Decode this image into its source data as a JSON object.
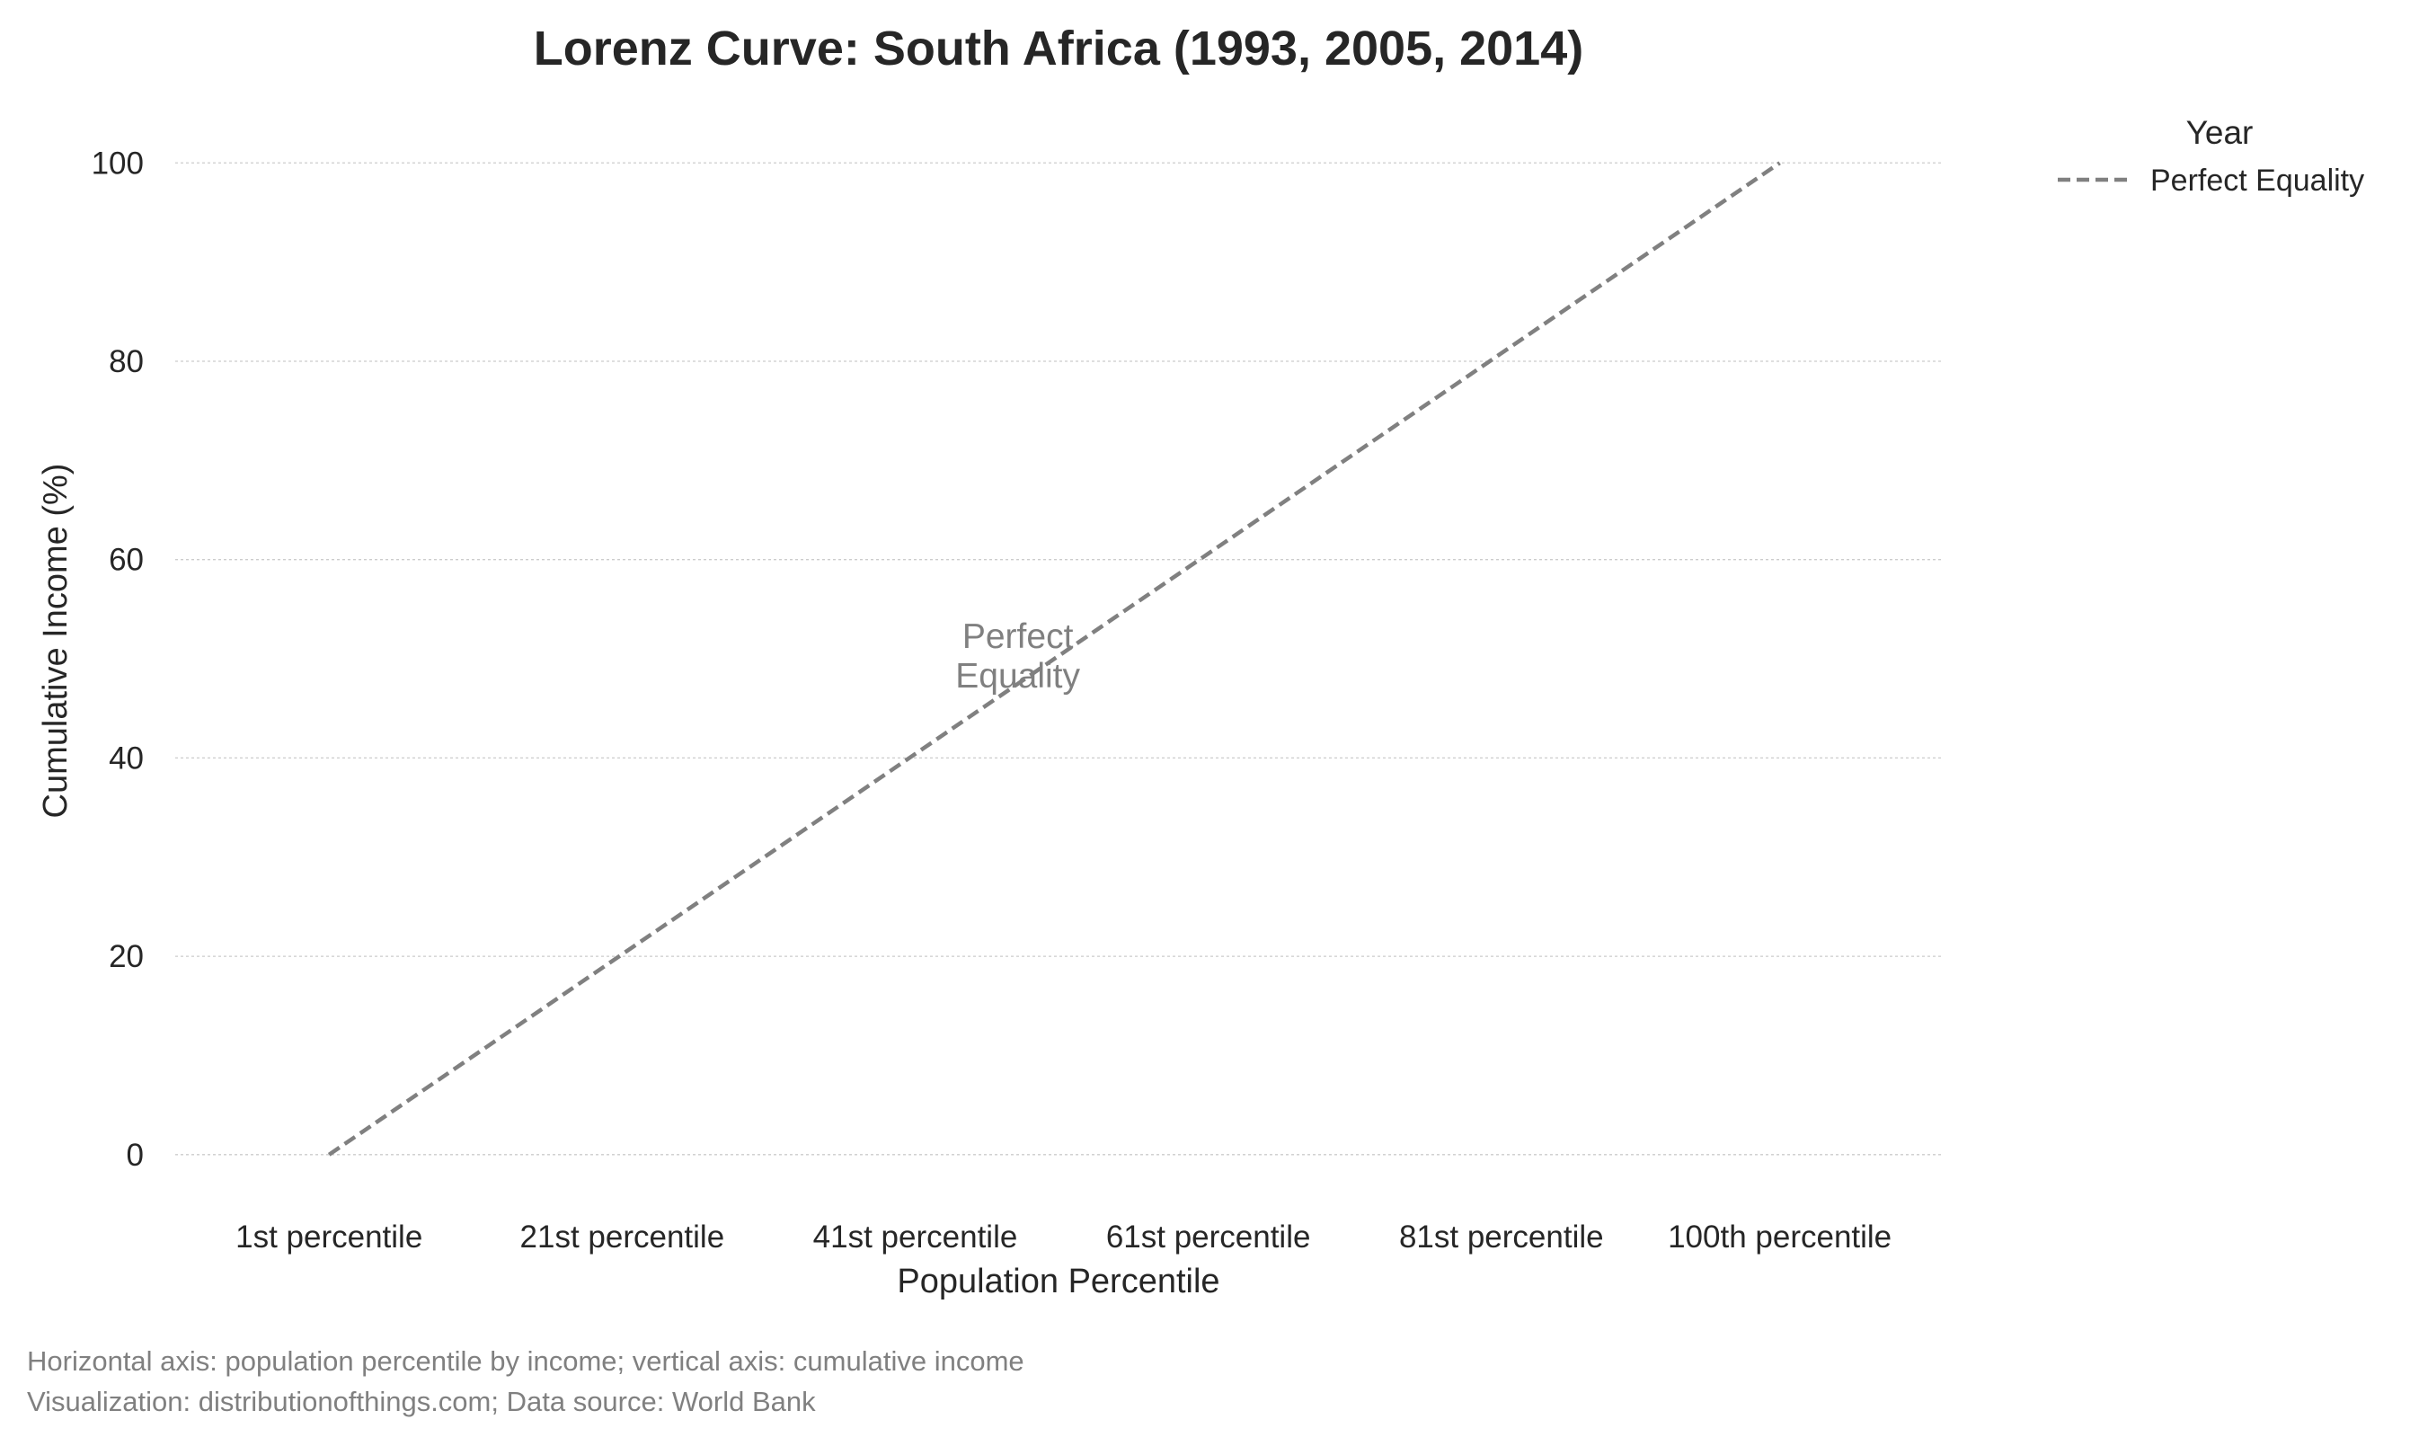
{
  "chart_data": {
    "type": "line",
    "title": "Lorenz Curve: South Africa (1993, 2005, 2014)",
    "xlabel": "Population Percentile",
    "ylabel": "Cumulative Income (%)",
    "x_tick_labels": [
      {
        "value": 1,
        "label": "1st percentile"
      },
      {
        "value": 21,
        "label": "21st percentile"
      },
      {
        "value": 41,
        "label": "41st percentile"
      },
      {
        "value": 61,
        "label": "61st percentile"
      },
      {
        "value": 81,
        "label": "81st percentile"
      },
      {
        "value": 100,
        "label": "100th percentile"
      }
    ],
    "y_ticks": [
      0,
      20,
      40,
      60,
      80,
      100
    ],
    "xlim": [
      -9.5,
      111
    ],
    "ylim": [
      -5,
      108
    ],
    "grid": "horizontal",
    "legend": {
      "title": "Year",
      "placement": "outside-right-top",
      "entries": [
        "Perfect Equality"
      ]
    },
    "series": [
      {
        "name": "Perfect Equality",
        "style": "dashed",
        "color": "#808080",
        "x": [
          1,
          100
        ],
        "y": [
          0,
          100
        ]
      }
    ],
    "annotations": [
      {
        "text": [
          "Perfect",
          "Equality"
        ],
        "x": 48,
        "y": 50
      }
    ],
    "footer": [
      "Horizontal axis: population percentile by income; vertical axis: cumulative income",
      "Visualization: distributionofthings.com; Data source: World Bank"
    ]
  }
}
